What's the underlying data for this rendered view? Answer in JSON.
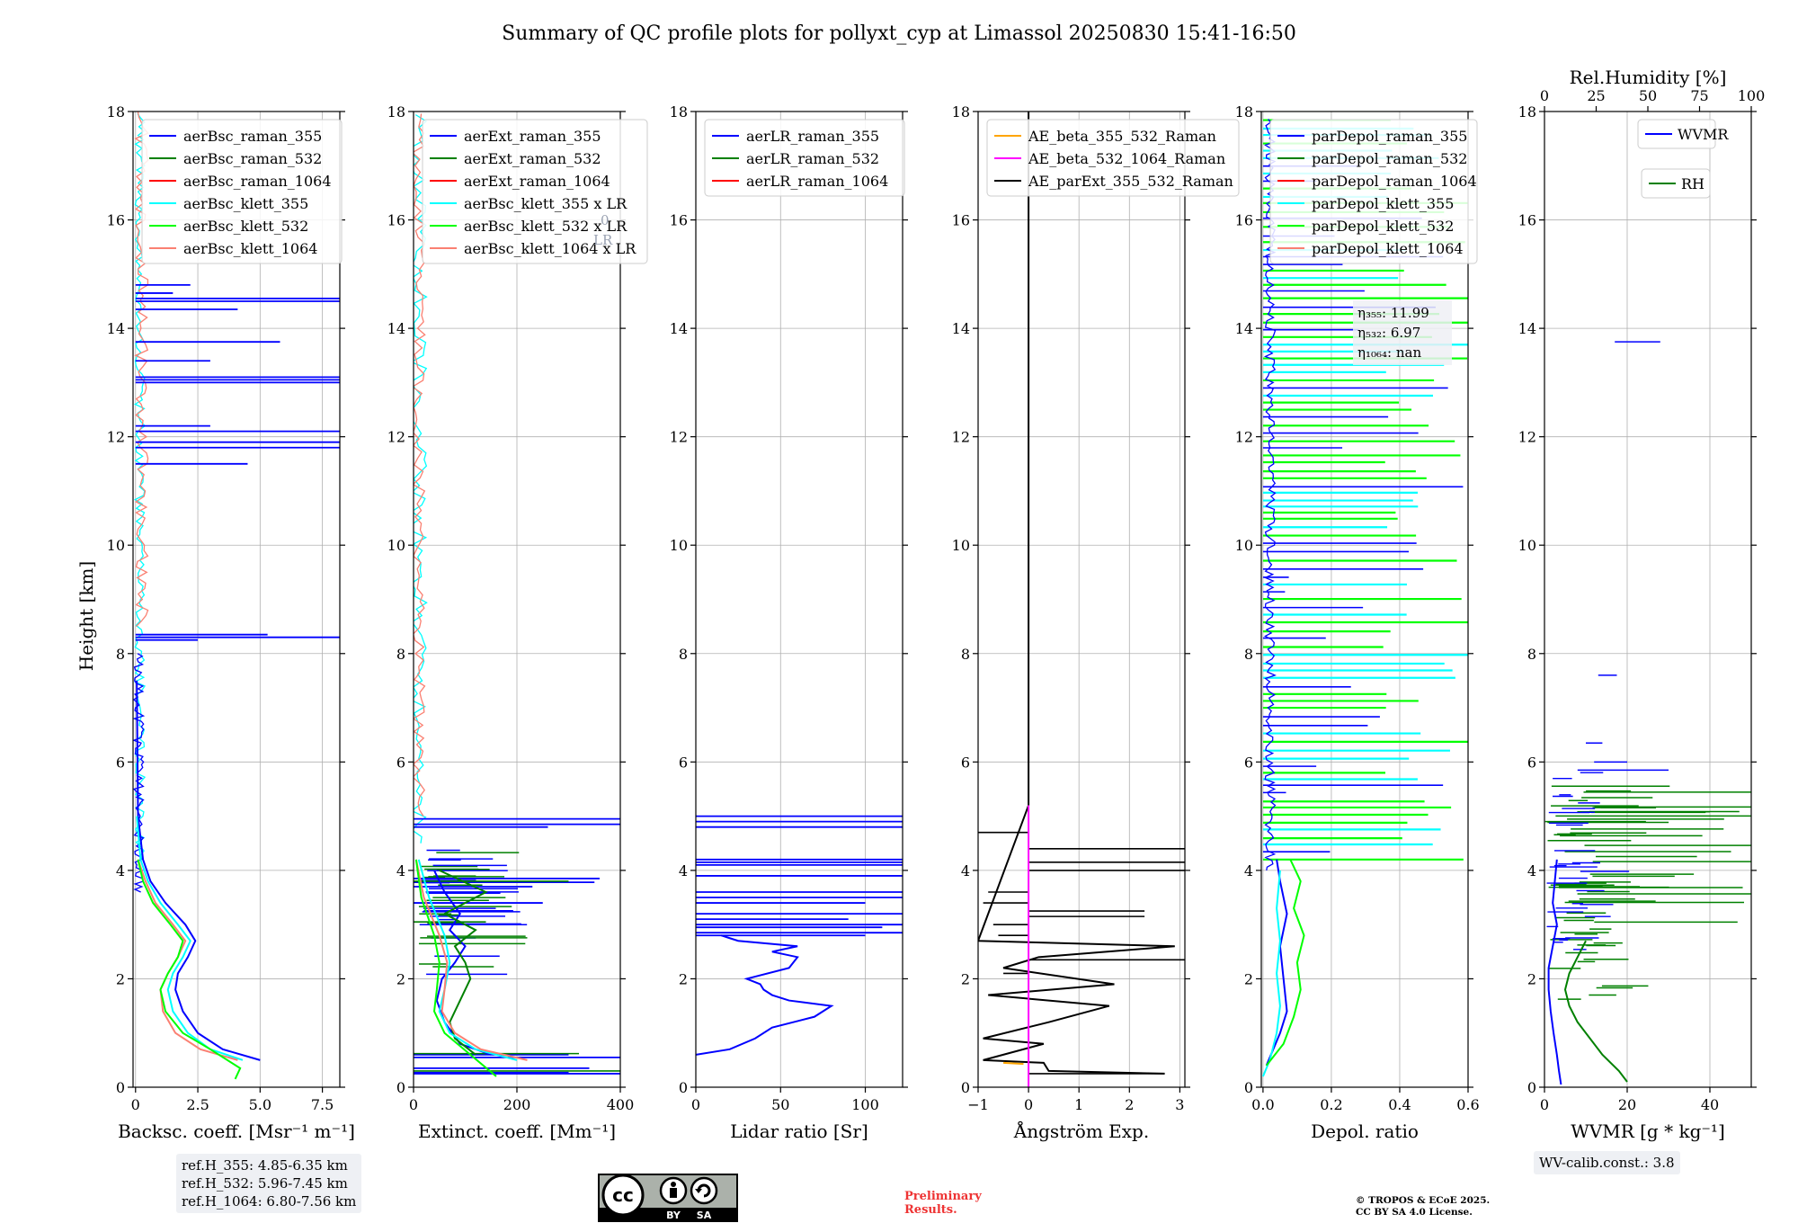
{
  "title": "Summary of QC profile plots for pollyxt_cyp at Limassol 20250830 15:41-16:50",
  "colors": {
    "c355": "#0000ff",
    "c532": "#008000",
    "c1064": "#ff0000",
    "k355": "#00ffff",
    "k532": "#00ff00",
    "k1064": "#fa8072",
    "ae1": "#ffa500",
    "ae2": "#ff00ff",
    "ae3": "#000000"
  },
  "chart_data": [
    {
      "type": "line",
      "id": "bsc",
      "xlabel": "Backsc. coeff. [Msr⁻¹ m⁻¹]",
      "ylabel": "Height [km]",
      "xlim": [
        -0.1,
        8.2
      ],
      "ylim": [
        0,
        18
      ],
      "xticks": [
        "0",
        "2.5",
        "5.0",
        "7.5"
      ],
      "xtick_values": [
        0,
        2.5,
        5.0,
        7.5
      ],
      "yticks": [
        "0",
        "2",
        "4",
        "6",
        "8",
        "10",
        "12",
        "14",
        "16",
        "18"
      ],
      "legend": [
        "aerBsc_raman_355",
        "aerBsc_raman_532",
        "aerBsc_raman_1064",
        "aerBsc_klett_355",
        "aerBsc_klett_532",
        "aerBsc_klett_1064"
      ],
      "series": [
        {
          "name": "aerBsc_raman_355",
          "color": "c355",
          "x": [
            5.0,
            3.5,
            2.5,
            1.9,
            1.6,
            1.7,
            2.1,
            2.4,
            2.0,
            1.2,
            0.6,
            0.3,
            0.1,
            0.05
          ],
          "y": [
            0.5,
            0.7,
            1.0,
            1.4,
            1.8,
            2.1,
            2.4,
            2.7,
            3.0,
            3.4,
            3.8,
            4.2,
            5.0,
            7.5
          ]
        },
        {
          "name": "aerBsc_klett_355",
          "color": "k355",
          "x": [
            4.3,
            3.0,
            2.1,
            1.5,
            1.3,
            1.5,
            1.9,
            2.2,
            1.7,
            1.0,
            0.5,
            0.2,
            0.05
          ],
          "y": [
            0.5,
            0.7,
            1.0,
            1.4,
            1.8,
            2.1,
            2.4,
            2.7,
            3.0,
            3.4,
            3.8,
            4.2,
            5.0
          ]
        },
        {
          "name": "aerBsc_klett_1064",
          "color": "k1064",
          "x": [
            4.1,
            2.6,
            1.6,
            1.1,
            1.0,
            1.3,
            1.7,
            2.0,
            1.5,
            0.8,
            0.4,
            0.1
          ],
          "y": [
            0.5,
            0.7,
            1.0,
            1.4,
            1.8,
            2.1,
            2.4,
            2.7,
            3.0,
            3.4,
            3.8,
            4.2
          ]
        },
        {
          "name": "aerBsc_klett_532",
          "color": "k532",
          "x": [
            4.0,
            4.2,
            3.0,
            1.9,
            1.2,
            1.0,
            1.3,
            1.7,
            1.9,
            1.4,
            0.7,
            0.3,
            0.1
          ],
          "y": [
            0.15,
            0.35,
            0.7,
            1.0,
            1.4,
            1.8,
            2.1,
            2.4,
            2.7,
            3.0,
            3.4,
            3.8,
            4.2
          ]
        }
      ]
    },
    {
      "type": "line",
      "id": "ext",
      "xlabel": "Extinct. coeff. [Mm⁻¹]",
      "xlim": [
        0,
        400
      ],
      "ylim": [
        0,
        18
      ],
      "xticks": [
        "0",
        "200",
        "400"
      ],
      "xtick_values": [
        0,
        200,
        400
      ],
      "yticks": [
        "0",
        "2",
        "4",
        "6",
        "8",
        "10",
        "12",
        "14",
        "16",
        "18"
      ],
      "legend": [
        "aerExt_raman_355",
        "aerExt_raman_532",
        "aerExt_raman_1064",
        "aerBsc_klett_355 x LR",
        "aerBsc_klett_532 x LR",
        "aerBsc_klett_1064 x LR"
      ],
      "hidden_text": [
        "0",
        "LR"
      ],
      "series": [
        {
          "name": "aerExt_raman_355",
          "color": "c355",
          "x": [
            150,
            90,
            60,
            45,
            55,
            80,
            100,
            70,
            90,
            60,
            40
          ],
          "y": [
            0.6,
            0.8,
            1.2,
            1.6,
            2.0,
            2.3,
            2.6,
            2.9,
            3.2,
            3.6,
            4.0
          ]
        },
        {
          "name": "aerExt_raman_532",
          "color": "c532",
          "x": [
            120,
            80,
            70,
            90,
            110,
            100,
            80,
            120,
            60,
            140,
            50
          ],
          "y": [
            0.6,
            0.9,
            1.2,
            1.6,
            2.0,
            2.3,
            2.6,
            2.9,
            3.2,
            3.6,
            4.0
          ]
        },
        {
          "name": "aerBsc_klett_355 x LR",
          "color": "k355",
          "x": [
            200,
            120,
            70,
            50,
            60,
            70,
            60,
            30,
            10
          ],
          "y": [
            0.5,
            0.7,
            1.0,
            1.4,
            1.8,
            2.3,
            2.8,
            3.5,
            4.2
          ]
        },
        {
          "name": "aerBsc_klett_1064 x LR",
          "color": "k1064",
          "x": [
            220,
            130,
            80,
            55,
            60,
            65,
            50,
            20,
            5
          ],
          "y": [
            0.5,
            0.7,
            1.0,
            1.4,
            1.8,
            2.3,
            2.8,
            3.5,
            4.2
          ]
        },
        {
          "name": "aerBsc_klett_532 x LR",
          "color": "k532",
          "x": [
            160,
            110,
            60,
            40,
            45,
            50,
            40,
            15,
            5
          ],
          "y": [
            0.2,
            0.6,
            1.0,
            1.4,
            1.8,
            2.3,
            2.8,
            3.5,
            4.2
          ]
        }
      ]
    },
    {
      "type": "line",
      "id": "lr",
      "xlabel": "Lidar ratio [Sr]",
      "xlim": [
        0,
        122
      ],
      "ylim": [
        0,
        18
      ],
      "xticks": [
        "0",
        "50",
        "100"
      ],
      "xtick_values": [
        0,
        50,
        100
      ],
      "yticks": [
        "0",
        "2",
        "4",
        "6",
        "8",
        "10",
        "12",
        "14",
        "16",
        "18"
      ],
      "legend": [
        "aerLR_raman_355",
        "aerLR_raman_532",
        "aerLR_raman_1064"
      ],
      "series": [
        {
          "name": "aerLR_raman_355",
          "color": "c355",
          "x": [
            0,
            20,
            35,
            45,
            70,
            80,
            55,
            45,
            40,
            38,
            30,
            55,
            60,
            45,
            60,
            25,
            20,
            15
          ],
          "y": [
            0.6,
            0.7,
            0.9,
            1.1,
            1.3,
            1.5,
            1.6,
            1.7,
            1.8,
            1.9,
            2.0,
            2.2,
            2.4,
            2.5,
            2.6,
            2.7,
            2.75,
            2.8
          ]
        }
      ]
    },
    {
      "type": "line",
      "id": "ae",
      "xlabel": "Ångström Exp.",
      "xlim": [
        -1,
        3.1
      ],
      "ylim": [
        0,
        18
      ],
      "xticks": [
        "−1",
        "0",
        "1",
        "2",
        "3"
      ],
      "xtick_values": [
        -1,
        0,
        1,
        2,
        3
      ],
      "yticks": [
        "0",
        "2",
        "4",
        "6",
        "8",
        "10",
        "12",
        "14",
        "16",
        "18"
      ],
      "legend": [
        "AE_beta_355_532_Raman",
        "AE_beta_532_1064_Raman",
        "AE_parExt_355_532_Raman"
      ],
      "series": [
        {
          "name": "AE_parExt_355_532_Raman",
          "color": "ae3",
          "x": [
            2.7,
            0.4,
            0.3,
            -0.9,
            0.3,
            -0.9,
            0.4,
            1.6,
            -0.8,
            1.7,
            -0.5,
            0.2,
            2.9,
            -1.0,
            0.0,
            0.0,
            0.0
          ],
          "y": [
            0.25,
            0.3,
            0.45,
            0.5,
            0.8,
            0.9,
            1.2,
            1.5,
            1.7,
            1.9,
            2.2,
            2.4,
            2.6,
            2.7,
            5.2,
            12.0,
            18.0
          ]
        },
        {
          "name": "AE_beta_532_1064_Raman",
          "color": "ae2",
          "x": [
            0.0,
            0.0,
            0.0
          ],
          "y": [
            0.0,
            3.0,
            5.2
          ]
        },
        {
          "name": "AE_beta_355_532_Raman",
          "color": "ae1",
          "x": [
            -0.5,
            -0.1
          ],
          "y": [
            0.45,
            0.43
          ]
        }
      ]
    },
    {
      "type": "line",
      "id": "depol",
      "xlabel": "Depol. ratio",
      "xlim": [
        -0.005,
        0.6
      ],
      "ylim": [
        0,
        18
      ],
      "xticks": [
        "0.0",
        "0.2",
        "0.4",
        "0.6"
      ],
      "xtick_values": [
        0.0,
        0.2,
        0.4,
        0.6
      ],
      "yticks": [
        "0",
        "2",
        "4",
        "6",
        "8",
        "10",
        "12",
        "14",
        "16",
        "18"
      ],
      "legend": [
        "parDepol_raman_355",
        "parDepol_raman_532",
        "parDepol_raman_1064",
        "parDepol_klett_355",
        "parDepol_klett_532",
        "parDepol_klett_1064"
      ],
      "series": [
        {
          "name": "parDepol_raman_355",
          "color": "c355",
          "x": [
            0.01,
            0.03,
            0.05,
            0.07,
            0.06,
            0.05,
            0.07,
            0.05,
            0.04
          ],
          "y": [
            0.4,
            0.7,
            1.0,
            1.4,
            2.0,
            2.6,
            3.2,
            3.8,
            4.2
          ]
        },
        {
          "name": "parDepol_klett_355",
          "color": "k355",
          "x": [
            0.0,
            0.02,
            0.04,
            0.05,
            0.04,
            0.05,
            0.04,
            0.05
          ],
          "y": [
            0.2,
            0.5,
            1.0,
            1.5,
            2.1,
            2.7,
            3.3,
            4.0
          ]
        },
        {
          "name": "parDepol_klett_532",
          "color": "k532",
          "x": [
            0.01,
            0.06,
            0.09,
            0.11,
            0.1,
            0.12,
            0.09,
            0.11,
            0.08
          ],
          "y": [
            0.4,
            0.8,
            1.3,
            1.8,
            2.3,
            2.8,
            3.3,
            3.8,
            4.2
          ]
        }
      ],
      "annotation": [
        "η₃₅₅: 11.99",
        "η₅₃₂: 6.97",
        "η₁₀₆₄: nan"
      ]
    },
    {
      "type": "line",
      "id": "wv",
      "xlabel": "WVMR [g * kg⁻¹]",
      "top_xlabel": "Rel.Humidity [%]",
      "xlim": [
        0,
        50
      ],
      "ylim": [
        0,
        18
      ],
      "xticks": [
        "0",
        "20",
        "40"
      ],
      "xtick_values": [
        0,
        20,
        40
      ],
      "top_xticks": [
        "0",
        "25",
        "50",
        "75",
        "100"
      ],
      "top_xtick_values": [
        0,
        25,
        50,
        75,
        100
      ],
      "yticks": [
        "0",
        "2",
        "4",
        "6",
        "8",
        "10",
        "12",
        "14",
        "16",
        "18"
      ],
      "legend": [
        "WVMR",
        "RH"
      ],
      "series": [
        {
          "name": "WVMR",
          "color": "c355",
          "x": [
            4.0,
            3.5,
            3.0,
            2.2,
            1.5,
            1.0,
            1.0,
            2.0,
            3.0,
            2.0,
            2.5,
            3.0
          ],
          "y": [
            0.05,
            0.3,
            0.6,
            1.0,
            1.4,
            1.8,
            2.2,
            2.6,
            3.0,
            3.4,
            3.8,
            4.2
          ]
        },
        {
          "name": "RH",
          "color": "c532",
          "x": [
            20,
            18,
            14,
            11,
            8,
            6,
            5,
            6,
            8,
            10
          ],
          "y": [
            0.1,
            0.3,
            0.6,
            0.9,
            1.2,
            1.5,
            1.8,
            2.1,
            2.4,
            2.7
          ]
        }
      ]
    }
  ],
  "info": {
    "ref_lines": [
      "ref.H_355: 4.85-6.35 km",
      "ref.H_532: 5.96-7.45 km",
      "ref.H_1064: 6.80-7.56 km"
    ],
    "wv_calib": "WV-calib.const.: 3.8",
    "preliminary": [
      "Preliminary",
      "Results."
    ],
    "copyright": [
      "© TROPOS & ECoE 2025.",
      "CC BY SA 4.0 License."
    ],
    "cc_badge": {
      "main": "cc",
      "by": "BY",
      "sa": "SA"
    }
  }
}
